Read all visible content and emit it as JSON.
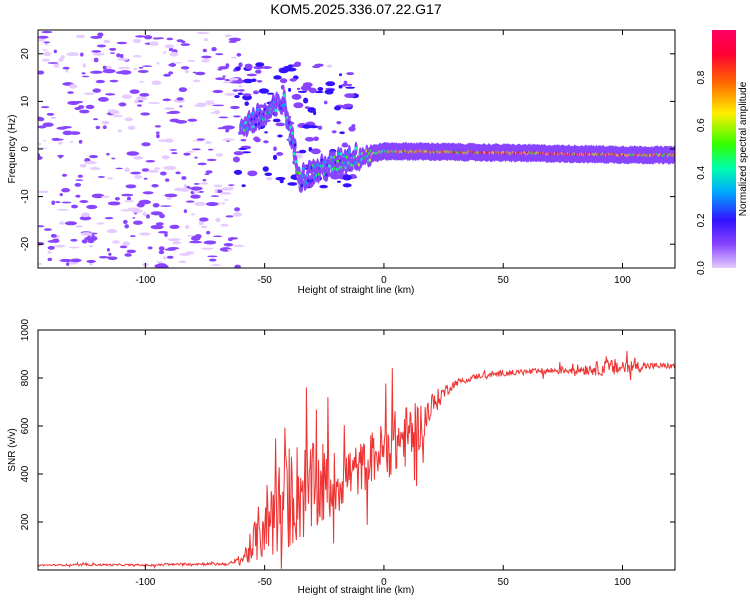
{
  "figure": {
    "title": "KOM5.2025.336.07.22.G17"
  },
  "chart_data": [
    {
      "type": "heatmap",
      "xlabel": "Height of straight line (km)",
      "ylabel": "Frequency (Hz)",
      "xlim": [
        -145,
        122
      ],
      "ylim": [
        -25,
        25
      ],
      "xticks": [
        -100,
        -50,
        0,
        50,
        100
      ],
      "yticks": [
        -20,
        -10,
        0,
        10,
        20
      ],
      "colorbar": {
        "label": "Normalized spectral amplitude",
        "range": [
          0.0,
          1.0
        ],
        "ticks": [
          0.0,
          0.2,
          0.4,
          0.6,
          0.8
        ],
        "colors": [
          "#e6ccff",
          "#8844ff",
          "#3311ff",
          "#00aaff",
          "#00ffaa",
          "#33ff00",
          "#ffee00",
          "#ff6600",
          "#ff0033",
          "#ff0066"
        ]
      },
      "ridge": [
        {
          "x": -60,
          "f": 5,
          "a": 0.15
        },
        {
          "x": -50,
          "f": 7,
          "a": 0.18
        },
        {
          "x": -42,
          "f": 10,
          "a": 0.12
        },
        {
          "x": -35,
          "f": -6,
          "a": 0.22
        },
        {
          "x": -25,
          "f": -4,
          "a": 0.2
        },
        {
          "x": -15,
          "f": -2,
          "a": 0.25
        },
        {
          "x": -5,
          "f": -1,
          "a": 0.35
        },
        {
          "x": 0,
          "f": -0.5,
          "a": 0.42
        },
        {
          "x": 10,
          "f": -0.5,
          "a": 0.5
        },
        {
          "x": 25,
          "f": -0.6,
          "a": 0.55
        },
        {
          "x": 50,
          "f": -0.8,
          "a": 0.6
        },
        {
          "x": 75,
          "f": -1.0,
          "a": 0.58
        },
        {
          "x": 100,
          "f": -1.2,
          "a": 0.55
        },
        {
          "x": 122,
          "f": -1.3,
          "a": 0.5
        }
      ]
    },
    {
      "type": "line",
      "xlabel": "Height of straight line (km)",
      "ylabel": "SNR (v/v)",
      "xlim": [
        -145,
        122
      ],
      "ylim": [
        0,
        1000
      ],
      "xticks": [
        -100,
        -50,
        0,
        50,
        100
      ],
      "yticks": [
        200,
        400,
        600,
        800,
        1000
      ],
      "series": [
        {
          "name": "SNR",
          "color": "#ee3333",
          "x": [
            -145,
            -120,
            -100,
            -80,
            -65,
            -60,
            -55,
            -50,
            -45,
            -40,
            -35,
            -30,
            -25,
            -20,
            -15,
            -10,
            -5,
            0,
            5,
            10,
            15,
            20,
            25,
            30,
            40,
            50,
            60,
            70,
            80,
            90,
            100,
            110,
            122
          ],
          "y": [
            20,
            22,
            20,
            25,
            25,
            40,
            100,
            200,
            250,
            300,
            330,
            330,
            340,
            360,
            400,
            420,
            470,
            500,
            530,
            560,
            600,
            680,
            740,
            780,
            810,
            820,
            825,
            830,
            835,
            840,
            845,
            850,
            850
          ],
          "noise": [
            3,
            4,
            4,
            5,
            6,
            20,
            80,
            160,
            200,
            220,
            220,
            200,
            160,
            140,
            120,
            110,
            110,
            120,
            140,
            130,
            100,
            60,
            30,
            15,
            12,
            12,
            12,
            14,
            20,
            30,
            40,
            15,
            10
          ]
        }
      ]
    }
  ]
}
